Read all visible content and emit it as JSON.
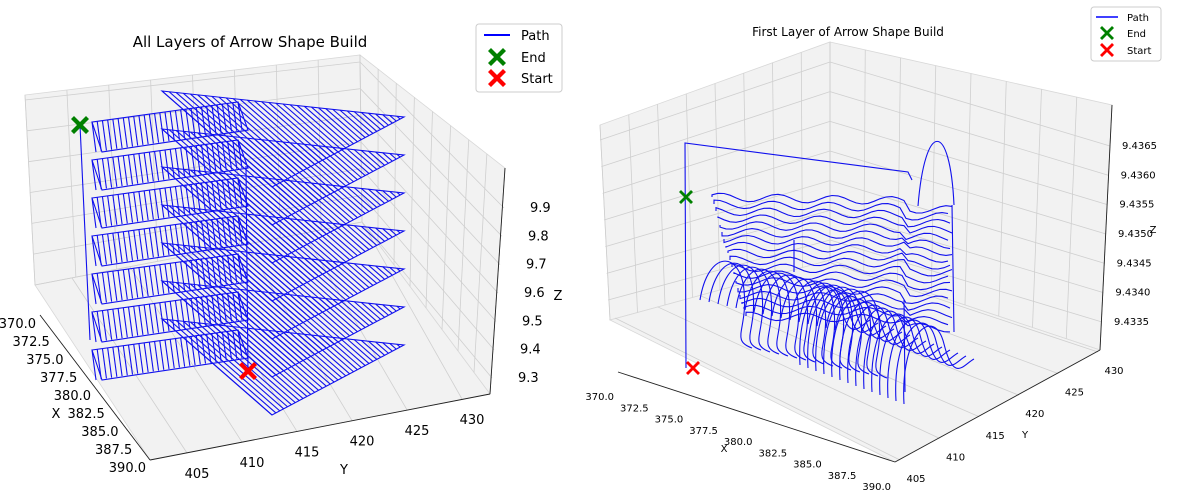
{
  "chart_data": [
    {
      "type": "line",
      "title": "All Layers of Arrow Shape Build",
      "xlabel": "X",
      "ylabel": "Y",
      "zlabel": "Z",
      "xlim": [
        370,
        390
      ],
      "ylim": [
        405,
        430
      ],
      "zlim": [
        9.3,
        9.9
      ],
      "x_ticks": [
        "370.0",
        "372.5",
        "375.0",
        "377.5",
        "380.0",
        "382.5",
        "385.0",
        "387.5",
        "390.0"
      ],
      "y_ticks": [
        "405",
        "410",
        "415",
        "420",
        "425",
        "430"
      ],
      "z_ticks": [
        "9.3",
        "9.4",
        "9.5",
        "9.6",
        "9.7",
        "9.8",
        "9.9"
      ],
      "legend": [
        "Path",
        "End",
        "Start"
      ],
      "legend_position": "top-right",
      "layers_z": [
        9.3,
        9.4,
        9.5,
        9.6,
        9.7,
        9.8,
        9.9
      ],
      "series": [
        {
          "name": "Path",
          "color": "#0000ff",
          "marker": "line"
        },
        {
          "name": "End",
          "color": "#008000",
          "marker": "X",
          "point": {
            "x": 370.0,
            "y": 405.0,
            "z": 9.9
          }
        },
        {
          "name": "Start",
          "color": "#ff0000",
          "marker": "X",
          "point": {
            "x": 387.0,
            "y": 414.0,
            "z": 9.3
          }
        }
      ],
      "grid": true
    },
    {
      "type": "line",
      "title": "First Layer of Arrow Shape Build",
      "xlabel": "X",
      "ylabel": "Y",
      "zlabel": "Z",
      "xlim": [
        370,
        390
      ],
      "ylim": [
        405,
        430
      ],
      "zlim": [
        9.4333,
        9.4368
      ],
      "x_ticks": [
        "370.0",
        "372.5",
        "375.0",
        "377.5",
        "380.0",
        "382.5",
        "385.0",
        "387.5",
        "390.0"
      ],
      "y_ticks": [
        "405",
        "410",
        "415",
        "420",
        "425",
        "430"
      ],
      "z_ticks": [
        "9.4335",
        "9.4340",
        "9.4345",
        "9.4350",
        "9.4355",
        "9.4360",
        "9.4365"
      ],
      "legend": [
        "Path",
        "End",
        "Start"
      ],
      "legend_position": "top-right",
      "series": [
        {
          "name": "Path",
          "color": "#0000ff",
          "marker": "line"
        },
        {
          "name": "End",
          "color": "#008000",
          "marker": "X",
          "point": {
            "x": 370.0,
            "y": 405.0,
            "z": 9.4356
          }
        },
        {
          "name": "Start",
          "color": "#ff0000",
          "marker": "X",
          "point": {
            "x": 370.0,
            "y": 405.0,
            "z": 9.4333
          }
        }
      ],
      "grid": true
    }
  ]
}
